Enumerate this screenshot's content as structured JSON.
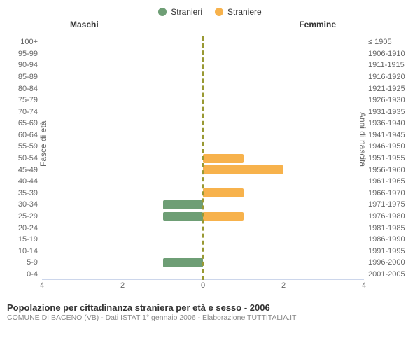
{
  "chart": {
    "type": "population-pyramid",
    "legend": {
      "male": {
        "label": "Stranieri",
        "color": "#6e9e75"
      },
      "female": {
        "label": "Straniere",
        "color": "#f7b24c"
      }
    },
    "side_headers": {
      "left": "Maschi",
      "right": "Femmine"
    },
    "y_axis_left_title": "Fasce di età",
    "y_axis_right_title": "Anni di nascita",
    "x_max": 4,
    "x_ticks_left": [
      4,
      2,
      0
    ],
    "x_ticks_right": [
      0,
      2,
      4
    ],
    "grid_color": "#ccd6eb",
    "center_line_color": "#999933",
    "background_color": "#ffffff",
    "rows": [
      {
        "age": "100+",
        "birth": "≤ 1905",
        "m": 0,
        "f": 0
      },
      {
        "age": "95-99",
        "birth": "1906-1910",
        "m": 0,
        "f": 0
      },
      {
        "age": "90-94",
        "birth": "1911-1915",
        "m": 0,
        "f": 0
      },
      {
        "age": "85-89",
        "birth": "1916-1920",
        "m": 0,
        "f": 0
      },
      {
        "age": "80-84",
        "birth": "1921-1925",
        "m": 0,
        "f": 0
      },
      {
        "age": "75-79",
        "birth": "1926-1930",
        "m": 0,
        "f": 0
      },
      {
        "age": "70-74",
        "birth": "1931-1935",
        "m": 0,
        "f": 0
      },
      {
        "age": "65-69",
        "birth": "1936-1940",
        "m": 0,
        "f": 0
      },
      {
        "age": "60-64",
        "birth": "1941-1945",
        "m": 0,
        "f": 0
      },
      {
        "age": "55-59",
        "birth": "1946-1950",
        "m": 0,
        "f": 0
      },
      {
        "age": "50-54",
        "birth": "1951-1955",
        "m": 0,
        "f": 1
      },
      {
        "age": "45-49",
        "birth": "1956-1960",
        "m": 0,
        "f": 2
      },
      {
        "age": "40-44",
        "birth": "1961-1965",
        "m": 0,
        "f": 0
      },
      {
        "age": "35-39",
        "birth": "1966-1970",
        "m": 0,
        "f": 1
      },
      {
        "age": "30-34",
        "birth": "1971-1975",
        "m": 1,
        "f": 0
      },
      {
        "age": "25-29",
        "birth": "1976-1980",
        "m": 1,
        "f": 1
      },
      {
        "age": "20-24",
        "birth": "1981-1985",
        "m": 0,
        "f": 0
      },
      {
        "age": "15-19",
        "birth": "1986-1990",
        "m": 0,
        "f": 0
      },
      {
        "age": "10-14",
        "birth": "1991-1995",
        "m": 0,
        "f": 0
      },
      {
        "age": "5-9",
        "birth": "1996-2000",
        "m": 1,
        "f": 0
      },
      {
        "age": "0-4",
        "birth": "2001-2005",
        "m": 0,
        "f": 0
      }
    ],
    "title": "Popolazione per cittadinanza straniera per età e sesso - 2006",
    "subtitle": "COMUNE DI BACENO (VB) - Dati ISTAT 1° gennaio 2006 - Elaborazione TUTTITALIA.IT"
  }
}
